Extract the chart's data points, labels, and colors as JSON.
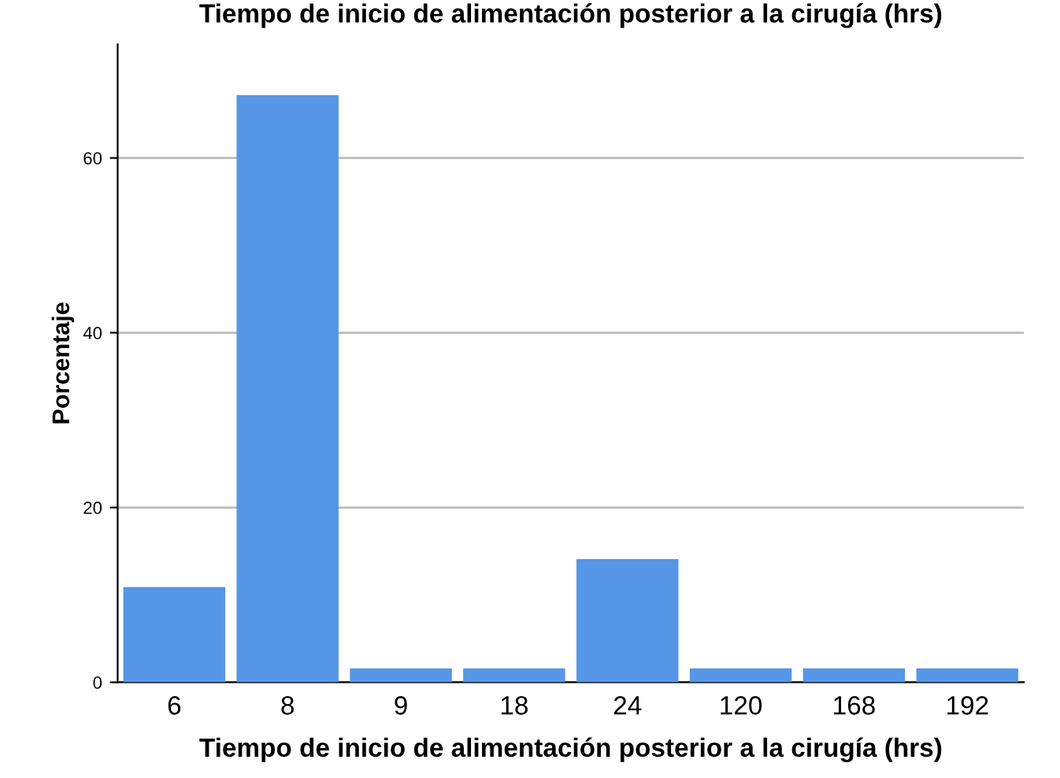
{
  "chart_data": {
    "type": "bar",
    "title": "Tiempo de inicio de alimentación posterior a la cirugía (hrs)",
    "xlabel": "Tiempo de inicio de alimentación posterior a la cirugía (hrs)",
    "ylabel": "Porcentaje",
    "categories": [
      "6",
      "8",
      "9",
      "18",
      "24",
      "120",
      "168",
      "192"
    ],
    "values": [
      10.9,
      67.2,
      1.6,
      1.6,
      14.1,
      1.6,
      1.6,
      1.6
    ],
    "color": "#5596e6",
    "ylim": [
      0,
      73
    ],
    "yticks": [
      0,
      20,
      40,
      60
    ],
    "grid": "y"
  }
}
